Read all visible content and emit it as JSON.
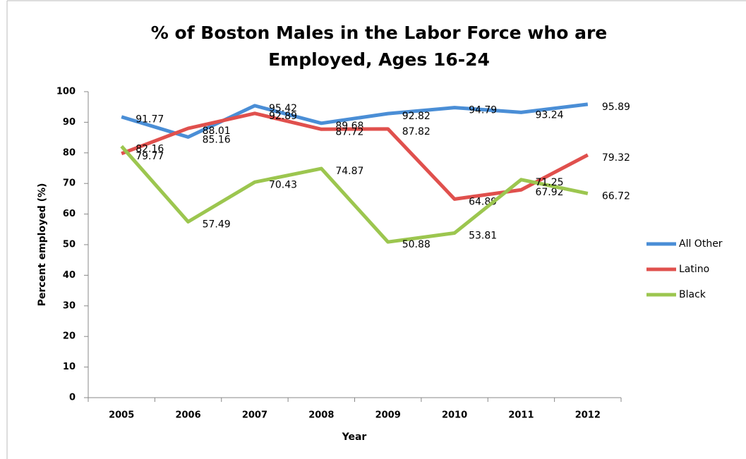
{
  "chart_data": {
    "type": "line",
    "title": [
      "% of Boston Males in the Labor Force who are",
      "Employed, Ages 16-24"
    ],
    "x_label": "Year",
    "y_label": "Percent employed (%)",
    "categories": [
      "2005",
      "2006",
      "2007",
      "2008",
      "2009",
      "2010",
      "2011",
      "2012"
    ],
    "series": [
      {
        "name": "All Other",
        "color": "#4a8ed6",
        "values": [
          91.77,
          85.16,
          95.42,
          89.68,
          92.82,
          94.79,
          93.24,
          95.89
        ]
      },
      {
        "name": "Latino",
        "color": "#e0504d",
        "values": [
          79.77,
          88.01,
          92.89,
          87.72,
          87.82,
          64.89,
          67.92,
          79.32
        ]
      },
      {
        "name": "Black",
        "color": "#9cc64f",
        "values": [
          82.16,
          57.49,
          70.43,
          74.87,
          50.88,
          53.81,
          71.25,
          66.72
        ]
      }
    ],
    "ylim": [
      0,
      100
    ],
    "yticks": [
      0,
      10,
      20,
      30,
      40,
      50,
      60,
      70,
      80,
      90,
      100
    ],
    "grid": false,
    "legend": "right"
  }
}
